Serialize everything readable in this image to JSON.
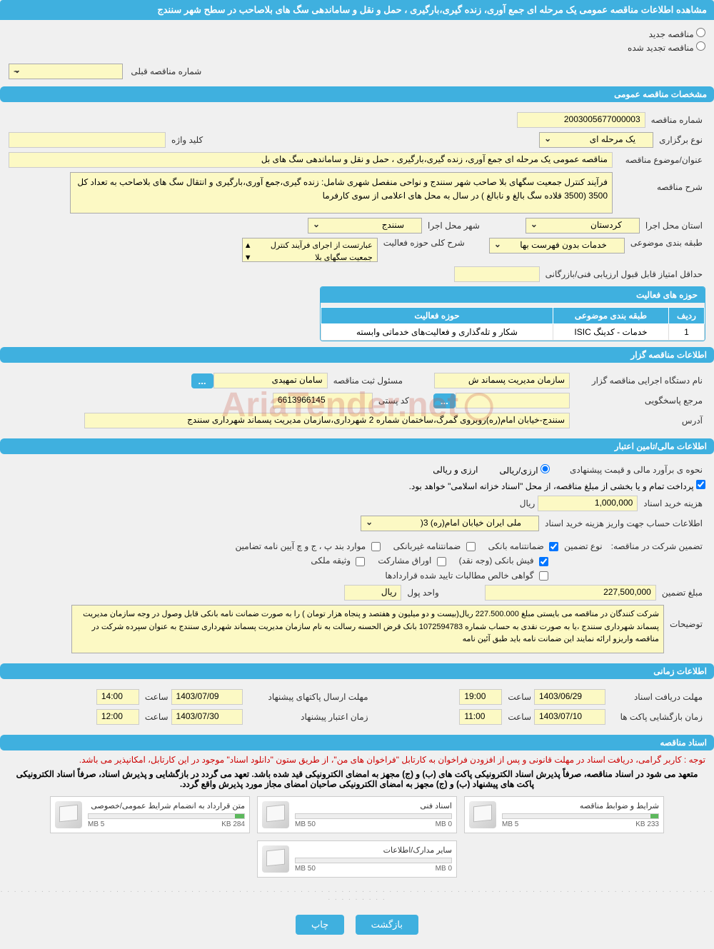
{
  "page_title": "مشاهده اطلاعات مناقصه عمومی یک مرحله ای جمع آوری، زنده گیری،بارگیری ، حمل و نقل و ساماندهی سگ های بلاصاحب در سطح شهر سنندج",
  "watermark_text": "AriaTender.net",
  "top_options": {
    "new_label": "مناقصه جدید",
    "renewed_label": "مناقصه تجدید شده"
  },
  "prev_number": {
    "label": "شماره مناقصه قبلی",
    "value": "--"
  },
  "sections": {
    "general": "مشخصات مناقصه عمومی",
    "tenderer": "اطلاعات مناقصه گزار",
    "financial": "اطلاعات مالی/تامین اعتبار",
    "timing": "اطلاعات زمانی",
    "docs": "اسناد مناقصه"
  },
  "general": {
    "number_label": "شماره مناقصه",
    "number_value": "2003005677000003",
    "type_label": "نوع برگزاری",
    "type_value": "یک مرحله ای",
    "keyword_label": "کلید واژه",
    "keyword_value": "",
    "title_label": "عنوان/موضوع مناقصه",
    "title_value": "مناقصه عمومی یک مرحله ای جمع آوری، زنده گیری،بارگیری ، حمل و نقل و ساماندهی سگ های بل",
    "desc_label": "شرح مناقصه",
    "desc_value": "فرآیند کنترل جمعیت سگهای بلا صاحب شهر سنندج و نواحی منفصل شهری شامل: زنده گیری،جمع آوری،بارگیری و انتقال سگ های بلاصاحب به تعداد کل 3500 (3500 قلاده سگ بالغ و نابالغ ) در سال به محل های اعلامی از سوی کارفرما",
    "province_label": "استان محل اجرا",
    "province_value": "کردستان",
    "city_label": "شهر محل اجرا",
    "city_value": "سنندج",
    "category_label": "طبقه بندی موضوعی",
    "category_value": "خدمات بدون فهرست بها",
    "scope_desc_label": "شرح کلی حوزه فعالیت",
    "scope_desc_value": "عبارتست از اجرای فرآیند کنترل جمعیت سگهای بلا",
    "min_score_label": "حداقل امتیاز قابل قبول ارزیابی فنی/بازرگانی",
    "activity_table": {
      "title": "حوزه های فعالیت",
      "headers": [
        "ردیف",
        "طبقه بندی موضوعی",
        "حوزه فعالیت"
      ],
      "row": [
        "1",
        "خدمات - کدینگ ISIC",
        "شکار و تله‌گذاری و فعالیت‌های خدماتی وابسته"
      ]
    }
  },
  "tenderer": {
    "org_label": "نام دستگاه اجرایی مناقصه گزار",
    "org_value": "سازمان مدیریت پسماند ش",
    "reg_label": "مسئول ثبت مناقصه",
    "reg_value": "سامان تمهیدی",
    "contact_label": "مرجع پاسخگویی",
    "contact_value": "",
    "postal_label": "کد پستی",
    "postal_value": "6613966145",
    "address_label": "آدرس",
    "address_value": "سنندج-خیابان امام(ره)روبروی گمرگ،ساختمان شماره 2 شهرداری،سازمان مدیریت پسماند شهرداری سنندج"
  },
  "financial": {
    "method_label": "نحوه ی برآورد مالی و قیمت پیشنهادی",
    "fx_label": "ارزی/ریالی",
    "fx_value": "ارزی و ریالی",
    "treasury_note": "پرداخت تمام و یا بخشی از مبلغ مناقصه، از محل \"اسناد خزانه اسلامی\" خواهد بود.",
    "doc_cost_label": "هزینه خرید اسناد",
    "doc_cost_value": "1,000,000",
    "currency": "ریال",
    "account_label": "اطلاعات حساب جهت واریز هزینه خرید اسناد",
    "account_value": "ملی ایران خیابان امام(ره) 3(",
    "guarantee_header": "تضمین شرکت در مناقصه:",
    "guarantee_type_label": "نوع تضمین",
    "opts": {
      "bank_guarantee": "ضمانتنامه بانکی",
      "nonbank_guarantee": "ضمانتنامه غیربانکی",
      "clauses": "موارد بند پ ، ج و چ آیین نامه تضامین",
      "cash": "فیش بانکی (وجه نقد)",
      "bonds": "اوراق مشارکت",
      "mortgage": "وثیقه ملکی",
      "net_receivable": "گواهی خالص مطالبات تایید شده قراردادها"
    },
    "checked": {
      "bank_guarantee": true,
      "cash": true
    },
    "amount_label": "مبلغ تضمین",
    "amount_value": "227,500,000",
    "unit_label": "واحد پول",
    "unit_value": "ریال",
    "remarks_label": "توضیحات",
    "remarks_value": "شرکت کنندگان در مناقصه می بایستی مبلغ  227.500.000 ریال(بیست و دو میلیون و هفتصد و پنجاه هزار تومان ) را به صورت ضمانت نامه بانکی قابل وصول در وجه سازمان مدیریت پسماند شهرداری سنندج ،یا به صورت نقدی به حساب  شماره 1072594783 بانک قرض الحسنه رسالت به نام سازمان مدیریت پسماند شهرداری سنندج به عنوان سپرده شرکت در مناقصه واریزو ارائه نمایند این ضمانت نامه باید طبق آئین نامه"
  },
  "timing": {
    "receive_label": "مهلت دریافت اسناد",
    "receive_date": "1403/06/29",
    "receive_time_label": "ساعت",
    "receive_time": "19:00",
    "submit_label": "مهلت ارسال پاکتهای پیشنهاد",
    "submit_date": "1403/07/09",
    "submit_time": "14:00",
    "open_label": "زمان بازگشایی پاکت ها",
    "open_date": "1403/07/10",
    "open_time": "11:00",
    "validity_label": "زمان اعتبار پیشنهاد",
    "validity_date": "1403/07/30",
    "validity_time": "12:00"
  },
  "docs": {
    "notice1": "توجه : کاربر گرامی، دریافت اسناد در مهلت قانونی و پس از افزودن فراخوان به کارتابل \"فراخوان های من\"، از طریق ستون \"دانلود اسناد\" موجود در این کارتابل، امکانپذیر می باشد.",
    "notice2": "متعهد می شود در اسناد مناقصه، صرفاً پذیرش اسناد الکترونیکی پاکت های (ب) و (ج) مجهز به امضای الکترونیکی قید شده باشد. تعهد می گردد در بازگشایی و پذیرش اسناد، صرفاً اسناد الکترونیکی پاکت های پیشنهاد (ب) و (ج) مجهز به امضای الکترونیکی صاحبان امضای مجاز مورد پذیرش واقع گردد.",
    "cards": [
      {
        "title": "شرایط و ضوابط مناقصه",
        "used": "233 KB",
        "total": "5 MB",
        "pct": 5
      },
      {
        "title": "اسناد فنی",
        "used": "0 MB",
        "total": "50 MB",
        "pct": 0
      },
      {
        "title": "متن قرارداد به انضمام شرایط عمومی/خصوصی",
        "used": "284 KB",
        "total": "5 MB",
        "pct": 6
      },
      {
        "title": "سایر مدارک/اطلاعات",
        "used": "0 MB",
        "total": "50 MB",
        "pct": 0
      }
    ]
  },
  "footer": {
    "back": "بازگشت",
    "print": "چاپ"
  },
  "colors": {
    "primary": "#3fb0df",
    "input_bg": "#fcf9c4",
    "page_bg": "#f0f0f0",
    "red": "#c00"
  }
}
